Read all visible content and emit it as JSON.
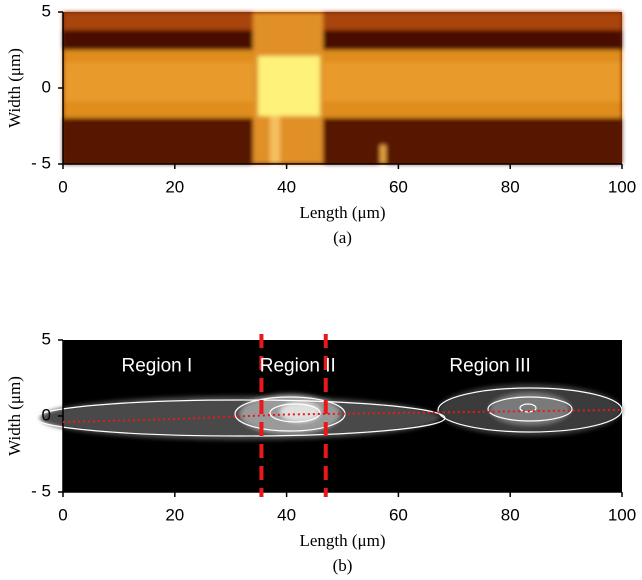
{
  "chart_data": [
    {
      "type": "image",
      "caption": "(a)",
      "xlabel": "Length (μm)",
      "ylabel": "Width (μm)",
      "xlim": [
        0,
        100
      ],
      "ylim": [
        -5,
        5
      ],
      "xticks": [
        0,
        20,
        40,
        60,
        80,
        100
      ],
      "yticks": [
        5,
        0,
        {
          "value": -5,
          "label": "- 5"
        }
      ]
    },
    {
      "type": "image",
      "caption": "(b)",
      "xlabel": "Length (μm)",
      "ylabel": "Width (μm)",
      "xlim": [
        0,
        100
      ],
      "ylim": [
        -5,
        5
      ],
      "xticks": [
        0,
        20,
        40,
        60,
        80,
        100
      ],
      "yticks": [
        5,
        0,
        {
          "value": -5,
          "label": "- 5"
        }
      ],
      "vlines": [
        35.5,
        47
      ],
      "vline_color": "#e8191b",
      "series": [
        {
          "color": "#e8191b",
          "x": [
            0,
            20,
            40,
            60,
            80,
            100
          ],
          "values": [
            -0.4,
            -0.2,
            0.1,
            0.2,
            0.3,
            0.4
          ]
        }
      ],
      "annotations": [
        {
          "text": "Region I",
          "x": 16.8,
          "y": 3.25
        },
        {
          "text": "Region II",
          "x": 42,
          "y": 3.25
        },
        {
          "text": "Region III",
          "x": 76.4,
          "y": 3.25
        }
      ]
    }
  ]
}
